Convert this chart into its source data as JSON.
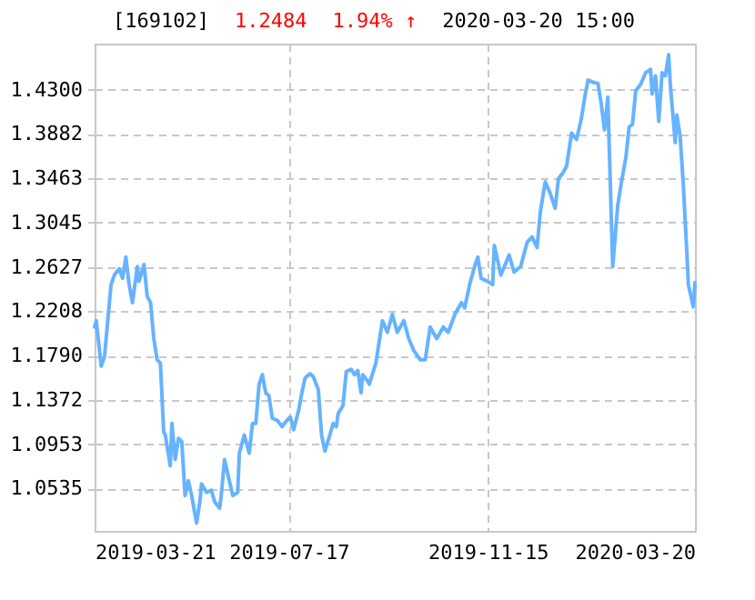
{
  "chart_data": {
    "type": "line",
    "title": "[169102]",
    "annotations": [
      "1.2484",
      "1.94% ↑",
      "2020-03-20 15:00"
    ],
    "x": [
      "2019-03-21",
      "2019-03-22",
      "2019-03-24",
      "2019-03-25",
      "2019-03-27",
      "2019-03-29",
      "2019-03-31",
      "2019-04-02",
      "2019-04-05",
      "2019-04-07",
      "2019-04-09",
      "2019-04-11",
      "2019-04-13",
      "2019-04-16",
      "2019-04-17",
      "2019-04-20",
      "2019-04-22",
      "2019-04-24",
      "2019-04-26",
      "2019-04-28",
      "2019-04-30",
      "2019-05-02",
      "2019-05-03",
      "2019-05-06",
      "2019-05-07",
      "2019-05-09",
      "2019-05-11",
      "2019-05-13",
      "2019-05-15",
      "2019-05-17",
      "2019-05-19",
      "2019-05-22",
      "2019-05-24",
      "2019-05-25",
      "2019-05-28",
      "2019-05-31",
      "2019-06-02",
      "2019-06-05",
      "2019-06-06",
      "2019-06-08",
      "2019-06-10",
      "2019-06-13",
      "2019-06-16",
      "2019-06-17",
      "2019-06-20",
      "2019-06-23",
      "2019-06-25",
      "2019-06-27",
      "2019-06-29",
      "2019-07-01",
      "2019-07-03",
      "2019-07-05",
      "2019-07-07",
      "2019-07-10",
      "2019-07-13",
      "2019-07-16",
      "2019-07-18",
      "2019-07-20",
      "2019-07-23",
      "2019-07-25",
      "2019-07-27",
      "2019-07-30",
      "2019-08-01",
      "2019-08-04",
      "2019-08-06",
      "2019-08-08",
      "2019-08-11",
      "2019-08-13",
      "2019-08-15",
      "2019-08-16",
      "2019-08-19",
      "2019-08-21",
      "2019-08-24",
      "2019-08-26",
      "2019-08-28",
      "2019-08-30",
      "2019-08-31",
      "2019-09-03",
      "2019-09-04",
      "2019-09-08",
      "2019-09-12",
      "2019-09-15",
      "2019-09-18",
      "2019-09-21",
      "2019-09-25",
      "2019-09-28",
      "2019-10-01",
      "2019-10-05",
      "2019-10-08",
      "2019-10-11",
      "2019-10-15",
      "2019-10-19",
      "2019-10-22",
      "2019-10-26",
      "2019-10-30",
      "2019-11-01",
      "2019-11-04",
      "2019-11-07",
      "2019-11-09",
      "2019-11-11",
      "2019-11-15",
      "2019-11-18",
      "2019-11-19",
      "2019-11-23",
      "2019-11-28",
      "2019-12-01",
      "2019-12-05",
      "2019-12-09",
      "2019-12-12",
      "2019-12-15",
      "2019-12-17",
      "2019-12-20",
      "2019-12-23",
      "2019-12-26",
      "2019-12-28",
      "2019-12-31",
      "2020-01-02",
      "2020-01-05",
      "2020-01-08",
      "2020-01-11",
      "2020-01-13",
      "2020-01-15",
      "2020-01-18",
      "2020-01-21",
      "2020-01-23",
      "2020-01-25",
      "2020-01-27",
      "2020-01-30",
      "2020-02-02",
      "2020-02-04",
      "2020-02-07",
      "2020-02-09",
      "2020-02-11",
      "2020-02-13",
      "2020-02-16",
      "2020-02-19",
      "2020-02-22",
      "2020-02-23",
      "2020-02-25",
      "2020-02-27",
      "2020-02-29",
      "2020-03-02",
      "2020-03-04",
      "2020-03-05",
      "2020-03-08",
      "2020-03-09",
      "2020-03-11",
      "2020-03-13",
      "2020-03-15",
      "2020-03-16",
      "2020-03-19",
      "2020-03-20"
    ],
    "series": [
      {
        "color": "#66b3ff",
        "values": [
          1.206,
          1.212,
          1.184,
          1.169,
          1.178,
          1.212,
          1.246,
          1.255,
          1.261,
          1.252,
          1.272,
          1.246,
          1.229,
          1.263,
          1.249,
          1.265,
          1.235,
          1.229,
          1.195,
          1.175,
          1.172,
          1.107,
          1.104,
          1.075,
          1.115,
          1.081,
          1.101,
          1.098,
          1.047,
          1.061,
          1.047,
          1.021,
          1.041,
          1.058,
          1.05,
          1.052,
          1.041,
          1.035,
          1.047,
          1.081,
          1.067,
          1.047,
          1.05,
          1.087,
          1.104,
          1.087,
          1.115,
          1.115,
          1.152,
          1.161,
          1.144,
          1.141,
          1.12,
          1.118,
          1.112,
          1.118,
          1.121,
          1.109,
          1.127,
          1.144,
          1.158,
          1.162,
          1.159,
          1.147,
          1.104,
          1.089,
          1.104,
          1.115,
          1.112,
          1.124,
          1.132,
          1.164,
          1.166,
          1.161,
          1.165,
          1.144,
          1.161,
          1.155,
          1.152,
          1.172,
          1.212,
          1.201,
          1.218,
          1.201,
          1.212,
          1.195,
          1.184,
          1.175,
          1.175,
          1.206,
          1.195,
          1.206,
          1.201,
          1.218,
          1.229,
          1.224,
          1.246,
          1.263,
          1.272,
          1.252,
          1.249,
          1.246,
          1.283,
          1.255,
          1.274,
          1.258,
          1.263,
          1.286,
          1.291,
          1.281,
          1.315,
          1.343,
          1.332,
          1.318,
          1.346,
          1.352,
          1.358,
          1.389,
          1.383,
          1.403,
          1.423,
          1.439,
          1.437,
          1.436,
          1.417,
          1.392,
          1.423,
          1.263,
          1.32,
          1.34,
          1.366,
          1.395,
          1.397,
          1.429,
          1.435,
          1.446,
          1.449,
          1.426,
          1.443,
          1.4,
          1.446,
          1.443,
          1.463,
          1.435,
          1.38,
          1.406,
          1.386,
          1.338,
          1.278,
          1.246,
          1.225,
          1.248
        ]
      }
    ],
    "xlim": [
      "2019-03-21",
      "2020-03-20"
    ],
    "xticks": [
      "2019-03-21",
      "2019-07-17",
      "2019-11-15",
      "2020-03-20"
    ],
    "ylim": [
      1.0136,
      1.4734
    ],
    "yticks": [
      {
        "value": 1.0535,
        "label": "1.0535"
      },
      {
        "value": 1.0953,
        "label": "1.0953"
      },
      {
        "value": 1.1372,
        "label": "1.1372"
      },
      {
        "value": 1.179,
        "label": "1.1790"
      },
      {
        "value": 1.2208,
        "label": "1.2208"
      },
      {
        "value": 1.2627,
        "label": "1.2627"
      },
      {
        "value": 1.3045,
        "label": "1.3045"
      },
      {
        "value": 1.3463,
        "label": "1.3463"
      },
      {
        "value": 1.3882,
        "label": "1.3882"
      },
      {
        "value": 1.43,
        "label": "1.4300"
      }
    ],
    "grid": true,
    "marker": "none",
    "line_style": "solid"
  }
}
